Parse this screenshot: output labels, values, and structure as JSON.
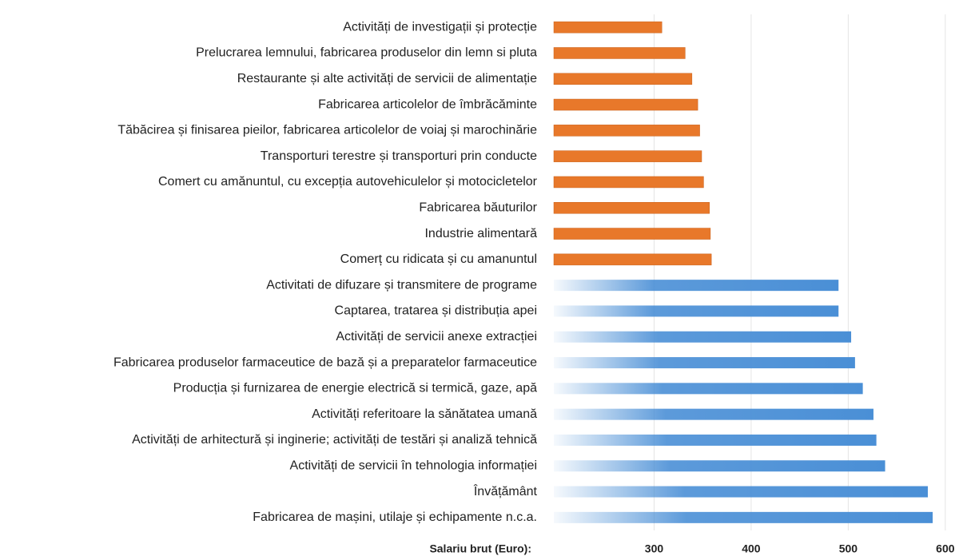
{
  "chart_data": {
    "type": "barh",
    "x_label": "Salariu brut (Euro):",
    "categories": [
      "Activități de investigații și protecție",
      "Prelucrarea lemnului, fabricarea produselor din lemn si pluta",
      "Restaurante și alte activități de servicii de alimentație",
      "Fabricarea articolelor de îmbrăcăminte",
      "Tăbăcirea și finisarea pieilor, fabricarea articolelor de voiaj și marochinărie",
      "Transporturi terestre și transporturi prin conducte",
      "Comert cu amănuntul, cu excepția autovehiculelor și motocicletelor",
      "Fabricarea băuturilor",
      "Industrie alimentară",
      "Comerț cu ridicata și cu amanuntul",
      "Activitati de difuzare și transmitere de programe",
      "Captarea, tratarea și distribuția apei",
      "Activități de servicii anexe extracției",
      "Fabricarea produselor farmaceutice de bază și a preparatelor farmaceutice",
      "Producția și furnizarea de energie electrică si termică, gaze, apă",
      "Activități referitoare la sănătatea umană",
      "Activități de arhitectură și inginerie; activități de testări și analiză tehnică",
      "Activități de servicii în tehnologia informației",
      "Învățământ",
      "Fabricarea de mașini, utilaje și echipamente n.c.a."
    ],
    "values": [
      308,
      332,
      339,
      345,
      347,
      349,
      351,
      357,
      358,
      359,
      490,
      490,
      503,
      507,
      515,
      526,
      529,
      538,
      582,
      587
    ],
    "colors": [
      "#e8782a",
      "#e8782a",
      "#e8782a",
      "#e8782a",
      "#e8782a",
      "#e8782a",
      "#e8782a",
      "#e8782a",
      "#e8782a",
      "#e8782a",
      "#4a8fd6",
      "#4a8fd6",
      "#4a8fd6",
      "#4a8fd6",
      "#4a8fd6",
      "#4a8fd6",
      "#4a8fd6",
      "#4a8fd6",
      "#4a8fd6",
      "#4a8fd6"
    ],
    "fade": [
      false,
      false,
      false,
      false,
      false,
      false,
      false,
      false,
      false,
      false,
      true,
      true,
      true,
      true,
      true,
      true,
      true,
      true,
      true,
      true
    ],
    "xlim": [
      200,
      610
    ],
    "xticks": [
      300,
      400,
      500,
      600
    ],
    "grid": true
  }
}
